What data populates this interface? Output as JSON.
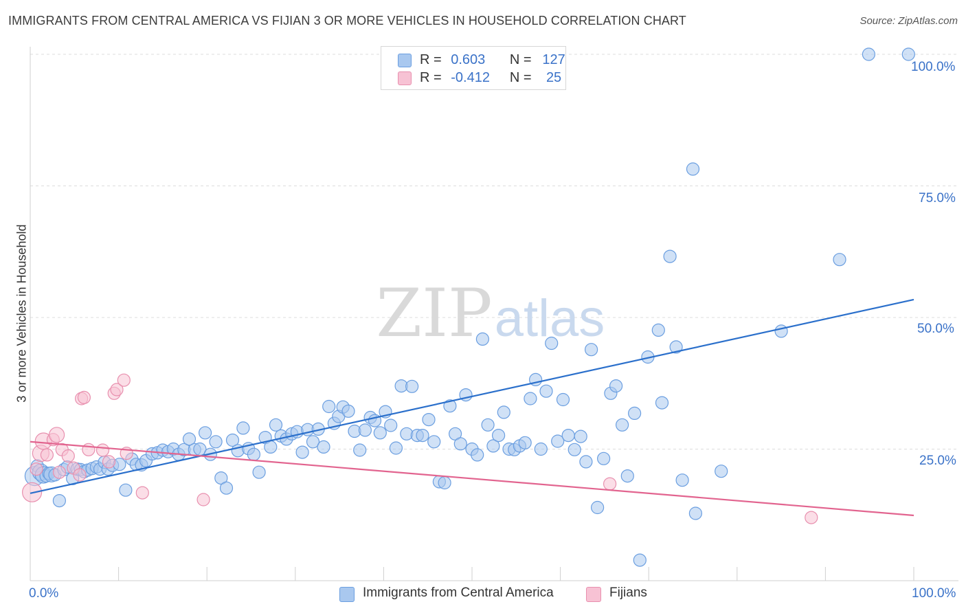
{
  "title": "IMMIGRANTS FROM CENTRAL AMERICA VS FIJIAN 3 OR MORE VEHICLES IN HOUSEHOLD CORRELATION CHART",
  "source": "Source: ZipAtlas.com",
  "watermark": {
    "zip": "ZIP",
    "atlas": "atlas"
  },
  "colors": {
    "blue_fill": "#a9c8ef",
    "blue_stroke": "#6a9ee0",
    "blue_line": "#2a6fcb",
    "pink_fill": "#f7c2d4",
    "pink_stroke": "#e88fae",
    "pink_line": "#e2648f",
    "tick_text": "#3a72c8"
  },
  "legend": {
    "rows": [
      {
        "r_label": "R =",
        "r_value": "0.603",
        "n_label": "N =",
        "n_value": "127"
      },
      {
        "r_label": "R =",
        "r_value": "-0.412",
        "n_label": "N =",
        "n_value": "25"
      }
    ]
  },
  "chart_data": {
    "type": "scatter",
    "ylabel": "3 or more Vehicles in Household",
    "x_tick_labels": [
      "0.0%",
      "100.0%"
    ],
    "y_tick_labels": [
      "25.0%",
      "50.0%",
      "75.0%",
      "100.0%"
    ],
    "xlim": [
      0,
      100
    ],
    "ylim": [
      0,
      100
    ],
    "grid": true,
    "legend_position": "top-center",
    "series": [
      {
        "name": "Immigrants from Central America",
        "color": "#a9c8ef",
        "r": 0.603,
        "n": 127,
        "trend": {
          "x": [
            0,
            100
          ],
          "y": [
            16.6,
            53.4
          ]
        },
        "points": [
          [
            0.5,
            19.9
          ],
          [
            0.8,
            21.8
          ],
          [
            1.2,
            20.6
          ],
          [
            1.5,
            20.1
          ],
          [
            1.8,
            19.9
          ],
          [
            2.1,
            20.4
          ],
          [
            2.4,
            20.2
          ],
          [
            2.8,
            20.1
          ],
          [
            3.3,
            15.2
          ],
          [
            3.8,
            21.1
          ],
          [
            4.2,
            21.6
          ],
          [
            4.8,
            19.4
          ],
          [
            5.3,
            21.2
          ],
          [
            5.7,
            21.1
          ],
          [
            6.1,
            20.7
          ],
          [
            6.5,
            21.0
          ],
          [
            7.0,
            21.3
          ],
          [
            7.5,
            21.6
          ],
          [
            7.9,
            21.2
          ],
          [
            8.4,
            22.5
          ],
          [
            8.8,
            21.2
          ],
          [
            9.3,
            21.9
          ],
          [
            10.1,
            22.1
          ],
          [
            10.8,
            17.2
          ],
          [
            11.5,
            23.1
          ],
          [
            12.0,
            22.1
          ],
          [
            12.6,
            22.0
          ],
          [
            13.1,
            22.8
          ],
          [
            13.8,
            24.1
          ],
          [
            14.4,
            24.3
          ],
          [
            15.0,
            24.8
          ],
          [
            15.6,
            24.5
          ],
          [
            16.2,
            25.0
          ],
          [
            16.8,
            24.0
          ],
          [
            17.4,
            24.9
          ],
          [
            18.0,
            26.9
          ],
          [
            18.6,
            24.9
          ],
          [
            19.2,
            25.0
          ],
          [
            19.8,
            28.1
          ],
          [
            20.4,
            24.0
          ],
          [
            21.0,
            26.4
          ],
          [
            21.6,
            19.5
          ],
          [
            22.2,
            17.6
          ],
          [
            22.9,
            26.7
          ],
          [
            23.5,
            24.7
          ],
          [
            24.1,
            29.0
          ],
          [
            24.7,
            25.1
          ],
          [
            25.3,
            24.0
          ],
          [
            25.9,
            20.6
          ],
          [
            26.6,
            27.2
          ],
          [
            27.2,
            25.4
          ],
          [
            27.8,
            29.6
          ],
          [
            28.4,
            27.5
          ],
          [
            29.0,
            26.9
          ],
          [
            29.6,
            27.9
          ],
          [
            30.2,
            28.3
          ],
          [
            30.8,
            24.4
          ],
          [
            31.4,
            28.7
          ],
          [
            32.0,
            26.4
          ],
          [
            32.6,
            28.8
          ],
          [
            33.2,
            25.4
          ],
          [
            33.8,
            33.1
          ],
          [
            34.4,
            29.9
          ],
          [
            34.9,
            31.2
          ],
          [
            35.4,
            33.0
          ],
          [
            36.0,
            32.2
          ],
          [
            36.7,
            28.4
          ],
          [
            37.3,
            24.8
          ],
          [
            37.9,
            28.6
          ],
          [
            38.5,
            31.0
          ],
          [
            39.0,
            30.4
          ],
          [
            39.6,
            28.1
          ],
          [
            40.2,
            32.1
          ],
          [
            40.8,
            29.5
          ],
          [
            41.4,
            25.2
          ],
          [
            42.0,
            37.0
          ],
          [
            42.6,
            27.9
          ],
          [
            43.2,
            36.9
          ],
          [
            43.8,
            27.6
          ],
          [
            44.4,
            27.6
          ],
          [
            45.1,
            30.6
          ],
          [
            45.7,
            26.4
          ],
          [
            46.3,
            18.8
          ],
          [
            46.9,
            18.6
          ],
          [
            47.5,
            33.2
          ],
          [
            48.1,
            27.9
          ],
          [
            48.7,
            26.0
          ],
          [
            49.3,
            35.3
          ],
          [
            50.0,
            25.0
          ],
          [
            50.6,
            23.9
          ],
          [
            51.2,
            45.9
          ],
          [
            51.8,
            29.6
          ],
          [
            52.4,
            25.6
          ],
          [
            53.0,
            27.6
          ],
          [
            53.6,
            32.0
          ],
          [
            54.2,
            25.0
          ],
          [
            54.8,
            24.9
          ],
          [
            55.4,
            25.6
          ],
          [
            56.0,
            26.2
          ],
          [
            56.6,
            34.6
          ],
          [
            57.2,
            38.2
          ],
          [
            57.8,
            25.0
          ],
          [
            58.4,
            36.0
          ],
          [
            59.0,
            45.1
          ],
          [
            59.7,
            26.5
          ],
          [
            60.3,
            34.4
          ],
          [
            60.9,
            27.6
          ],
          [
            61.6,
            24.9
          ],
          [
            62.3,
            27.4
          ],
          [
            62.9,
            22.6
          ],
          [
            63.5,
            43.9
          ],
          [
            64.2,
            13.9
          ],
          [
            64.9,
            23.2
          ],
          [
            65.7,
            35.6
          ],
          [
            66.3,
            37.0
          ],
          [
            67.0,
            29.6
          ],
          [
            67.6,
            19.9
          ],
          [
            68.4,
            31.8
          ],
          [
            69.0,
            3.9
          ],
          [
            69.9,
            42.5
          ],
          [
            71.1,
            47.6
          ],
          [
            71.5,
            33.8
          ],
          [
            72.4,
            61.6
          ],
          [
            73.1,
            44.4
          ],
          [
            73.8,
            19.1
          ],
          [
            75.0,
            78.2
          ],
          [
            75.3,
            12.8
          ],
          [
            78.2,
            20.8
          ],
          [
            85.0,
            47.4
          ],
          [
            91.6,
            61.0
          ],
          [
            94.9,
            100.0
          ],
          [
            99.4,
            100.0
          ]
        ]
      },
      {
        "name": "Fijians",
        "color": "#f7c2d4",
        "r": -0.412,
        "n": 25,
        "trend": {
          "x": [
            0,
            100
          ],
          "y": [
            26.4,
            12.4
          ]
        },
        "points": [
          [
            0.2,
            16.8
          ],
          [
            0.7,
            21.2
          ],
          [
            1.2,
            24.2
          ],
          [
            1.5,
            26.5
          ],
          [
            1.9,
            23.9
          ],
          [
            2.6,
            26.8
          ],
          [
            3.0,
            27.7
          ],
          [
            3.3,
            20.6
          ],
          [
            3.6,
            24.9
          ],
          [
            4.3,
            23.7
          ],
          [
            4.9,
            21.4
          ],
          [
            5.6,
            20.1
          ],
          [
            5.8,
            34.6
          ],
          [
            6.1,
            34.8
          ],
          [
            6.6,
            24.9
          ],
          [
            8.2,
            24.8
          ],
          [
            8.9,
            22.6
          ],
          [
            9.5,
            35.6
          ],
          [
            9.8,
            36.3
          ],
          [
            10.6,
            38.1
          ],
          [
            10.9,
            24.2
          ],
          [
            12.7,
            16.7
          ],
          [
            19.6,
            15.4
          ],
          [
            65.6,
            18.4
          ],
          [
            88.4,
            12.0
          ]
        ]
      }
    ]
  }
}
